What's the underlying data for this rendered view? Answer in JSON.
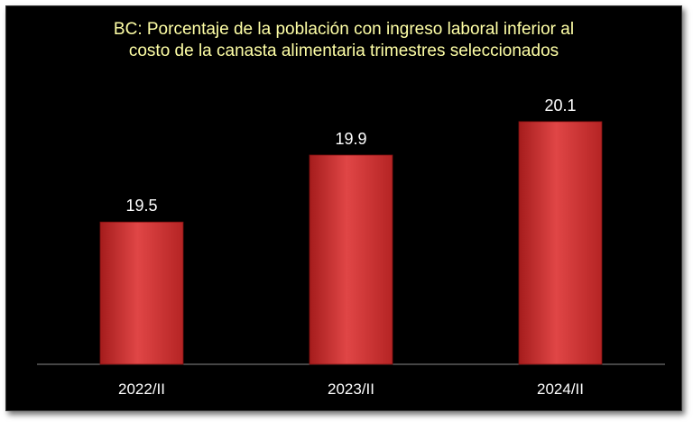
{
  "chart_data": {
    "type": "bar",
    "title_lines": [
      "BC: Porcentaje de la población con ingreso laboral inferior al",
      "costo de la canasta alimentaria trimestres seleccionados"
    ],
    "categories": [
      "2022/II",
      "2023/II",
      "2024/II"
    ],
    "values": [
      19.5,
      19.9,
      20.1
    ],
    "data_labels": [
      "19.5",
      "19.9",
      "20.1"
    ],
    "ylim": [
      18.65,
      20.25
    ],
    "grid": false,
    "legend": "none",
    "bar_color": "#d93b3b"
  }
}
